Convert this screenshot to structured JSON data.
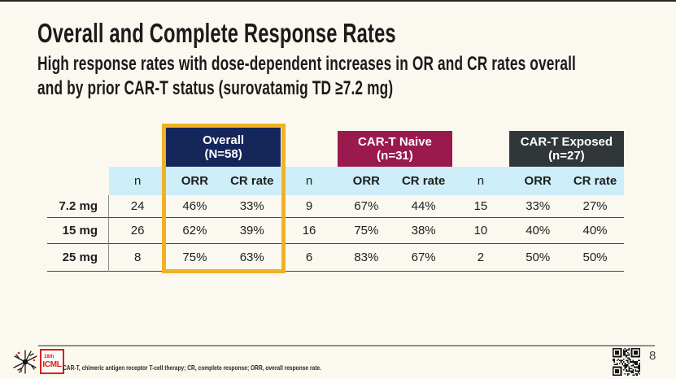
{
  "slide": {
    "title": "Overall and Complete Response Rates",
    "subtitle_line1": "High response rates with dose-dependent increases in OR and CR rates overall",
    "subtitle_line2": "and by prior CAR-T status (surovatamig TD ≥7.2 mg)",
    "page_number": "8"
  },
  "table": {
    "groups": [
      {
        "label": "Overall",
        "n_label": "(N=58)",
        "highlighted": true
      },
      {
        "label": "CAR-T Naive",
        "n_label": "(n=31)",
        "highlighted": false
      },
      {
        "label": "CAR-T Exposed",
        "n_label": "(n=27)",
        "highlighted": false
      }
    ],
    "subheaders": {
      "n": "n",
      "orr": "ORR",
      "cr": "CR rate"
    },
    "rows": [
      {
        "dose": "7.2 mg",
        "overall": {
          "n": "24",
          "orr": "46%",
          "cr": "33%"
        },
        "naive": {
          "n": "9",
          "orr": "67%",
          "cr": "44%"
        },
        "exposed": {
          "n": "15",
          "orr": "33%",
          "cr": "27%"
        }
      },
      {
        "dose": "15 mg",
        "overall": {
          "n": "26",
          "orr": "62%",
          "cr": "39%"
        },
        "naive": {
          "n": "16",
          "orr": "75%",
          "cr": "38%"
        },
        "exposed": {
          "n": "10",
          "orr": "40%",
          "cr": "40%"
        }
      },
      {
        "dose": "25 mg",
        "overall": {
          "n": "8",
          "orr": "75%",
          "cr": "63%"
        },
        "naive": {
          "n": "6",
          "orr": "83%",
          "cr": "67%"
        },
        "exposed": {
          "n": "2",
          "orr": "50%",
          "cr": "50%"
        }
      }
    ],
    "colors": {
      "overall_bg": "#15265B",
      "naive_bg": "#9A1A4D",
      "exposed_bg": "#313739",
      "subheader_bg": "#CDEEF8",
      "highlight_border": "#F0B125",
      "slide_background": "#FBF8EF",
      "logo_red": "#D7201D"
    }
  },
  "footer": {
    "footnote": "CAR-T, chimeric antigen receptor T-cell therapy; CR, complete response; ORR, overall response rate.",
    "logo_line1": "18th",
    "logo_line2": "ICML"
  }
}
